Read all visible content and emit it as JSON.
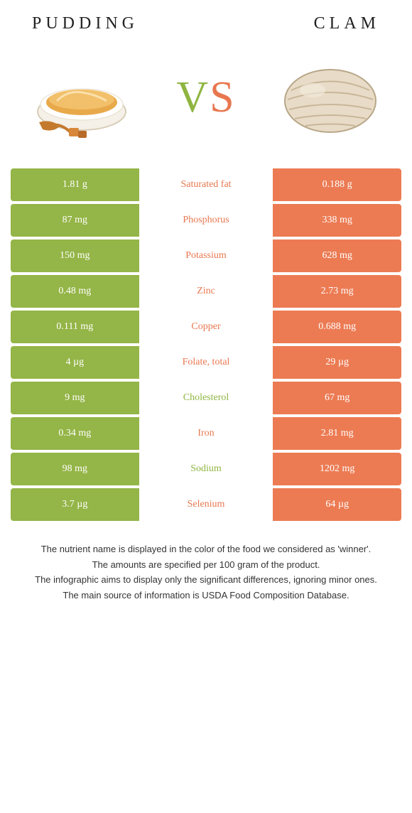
{
  "header": {
    "left_title": "PUDDING",
    "right_title": "CLAM"
  },
  "vs": {
    "v": "V",
    "s": "S"
  },
  "colors": {
    "left_bg": "#94b547",
    "right_bg": "#ec7b53",
    "left_text": "#8fb540",
    "right_text": "#e8774f"
  },
  "rows": [
    {
      "left": "1.81 g",
      "label": "Saturated fat",
      "right": "0.188 g",
      "winner": "right"
    },
    {
      "left": "87 mg",
      "label": "Phosphorus",
      "right": "338 mg",
      "winner": "right"
    },
    {
      "left": "150 mg",
      "label": "Potassium",
      "right": "628 mg",
      "winner": "right"
    },
    {
      "left": "0.48 mg",
      "label": "Zinc",
      "right": "2.73 mg",
      "winner": "right"
    },
    {
      "left": "0.111 mg",
      "label": "Copper",
      "right": "0.688 mg",
      "winner": "right"
    },
    {
      "left": "4 µg",
      "label": "Folate, total",
      "right": "29 µg",
      "winner": "right"
    },
    {
      "left": "9 mg",
      "label": "Cholesterol",
      "right": "67 mg",
      "winner": "left"
    },
    {
      "left": "0.34 mg",
      "label": "Iron",
      "right": "2.81 mg",
      "winner": "right"
    },
    {
      "left": "98 mg",
      "label": "Sodium",
      "right": "1202 mg",
      "winner": "left"
    },
    {
      "left": "3.7 µg",
      "label": "Selenium",
      "right": "64 µg",
      "winner": "right"
    }
  ],
  "footnotes": [
    "The nutrient name is displayed in the color of the food we considered as 'winner'.",
    "The amounts are specified per 100 gram of the product.",
    "The infographic aims to display only the significant differences, ignoring minor ones.",
    "The main source of information is USDA Food Composition Database."
  ]
}
